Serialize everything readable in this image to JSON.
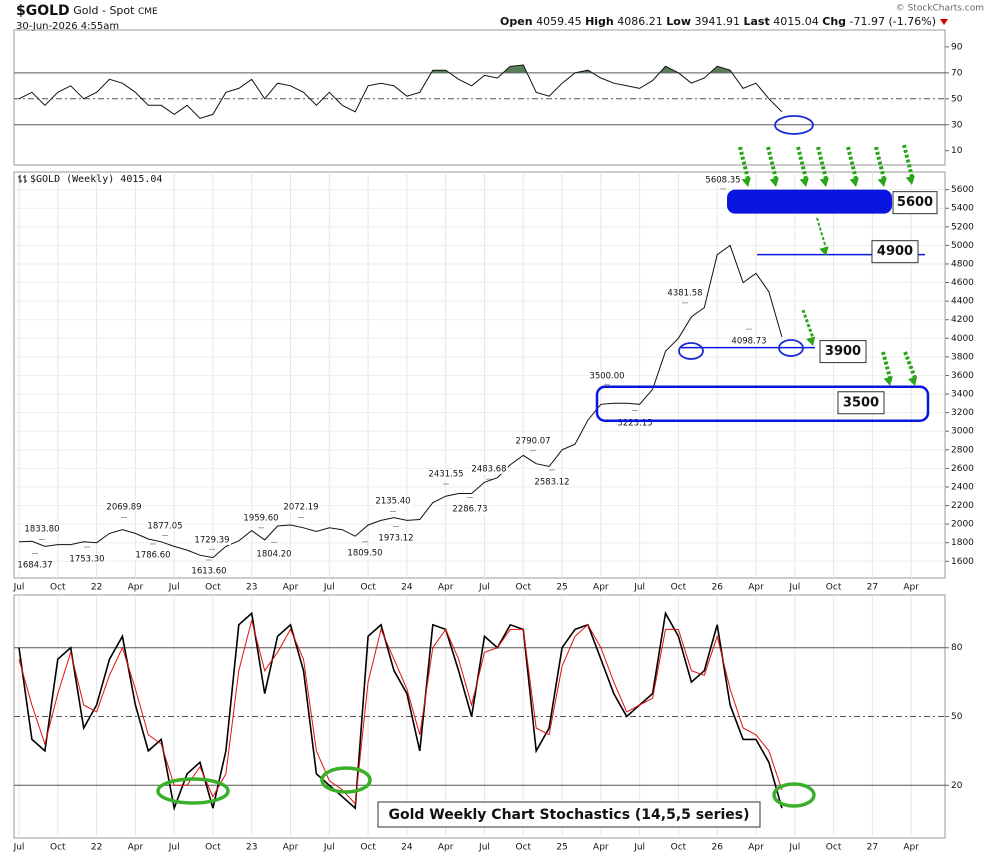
{
  "header": {
    "symbol": "$GOLD",
    "name": "Gold - Spot",
    "exchange": "CME",
    "date": "30-Jun-2026 4:55am",
    "open_label": "Open",
    "open": 4059.45,
    "high_label": "High",
    "high": 4086.21,
    "low_label": "Low",
    "low": 3941.91,
    "last_label": "Last",
    "last": 4015.04,
    "chg_label": "Chg",
    "chg": -71.97,
    "chg_pct": "(-1.76%)",
    "credit": "© StockCharts.com"
  },
  "chart_data": [
    {
      "type": "line",
      "ylim": [
        -1,
        103
      ],
      "yticks": [
        10,
        30,
        50,
        70,
        90
      ],
      "reference_lines": [
        {
          "value": 70,
          "style": "solid"
        },
        {
          "value": 50,
          "style": "dashdot"
        },
        {
          "value": 30,
          "style": "solid"
        }
      ],
      "fill_above": 70,
      "fill_color": "#5a7d5c",
      "series": [
        {
          "color": "#111111",
          "values": [
            50,
            55,
            45,
            55,
            60,
            50,
            55,
            65,
            62,
            55,
            45,
            45,
            38,
            45,
            35,
            38,
            55,
            58,
            65,
            50,
            62,
            60,
            55,
            45,
            55,
            45,
            40,
            60,
            62,
            60,
            52,
            55,
            72,
            72,
            65,
            60,
            68,
            66,
            75,
            76,
            55,
            52,
            62,
            70,
            72,
            66,
            62,
            60,
            58,
            64,
            75,
            70,
            62,
            66,
            75,
            72,
            58,
            62,
            50,
            40,
            null,
            null,
            null,
            null,
            null,
            null,
            null,
            null,
            null,
            null
          ]
        }
      ]
    },
    {
      "type": "line",
      "title": "$GOLD (Weekly) 4015.04",
      "ylim": [
        1420,
        5790
      ],
      "yticks": [
        1600,
        1800,
        2000,
        2200,
        2400,
        2600,
        2800,
        3000,
        3200,
        3400,
        3600,
        3800,
        4000,
        4200,
        4400,
        4600,
        4800,
        5000,
        5200,
        5400,
        5600
      ],
      "grid": true,
      "categories": [
        "Jul",
        null,
        null,
        "Oct",
        null,
        null,
        "22",
        null,
        null,
        "Apr",
        null,
        null,
        "Jul",
        null,
        null,
        "Oct",
        null,
        null,
        "23",
        null,
        null,
        "Apr",
        null,
        null,
        "Jul",
        null,
        null,
        "Oct",
        null,
        null,
        "24",
        null,
        null,
        "Apr",
        null,
        null,
        "Jul",
        null,
        null,
        "Oct",
        null,
        null,
        "25",
        null,
        null,
        "Apr",
        null,
        null,
        "Jul",
        null,
        null,
        "Oct",
        null,
        null,
        "26",
        null,
        null,
        "Apr",
        null,
        null,
        "Jul",
        null,
        null,
        "Oct",
        null,
        null,
        "27",
        null,
        null,
        "Apr"
      ],
      "series": [
        {
          "color": "#111111",
          "values": [
            1810,
            1815,
            1760,
            1780,
            1780,
            1810,
            1800,
            1900,
            1940,
            1900,
            1840,
            1810,
            1760,
            1720,
            1665,
            1640,
            1760,
            1820,
            1930,
            1830,
            1980,
            1990,
            1960,
            1920,
            1960,
            1940,
            1870,
            1990,
            2040,
            2070,
            2040,
            2050,
            2230,
            2300,
            2330,
            2330,
            2450,
            2500,
            2640,
            2740,
            2650,
            2620,
            2800,
            2860,
            3120,
            3290,
            3300,
            3300,
            3290,
            3450,
            3860,
            4000,
            4230,
            4330,
            4900,
            5000,
            4600,
            4700,
            4500,
            4015,
            null,
            null,
            null,
            null,
            null,
            null,
            null,
            null,
            null,
            null
          ]
        }
      ],
      "annotations": [
        {
          "value": 1833.8,
          "label": "1833.80"
        },
        {
          "value": 1684.37,
          "label": "1684.37"
        },
        {
          "value": 1753.3,
          "label": "1753.30"
        },
        {
          "value": 2069.89,
          "label": "2069.89"
        },
        {
          "value": 1786.6,
          "label": "1786.60"
        },
        {
          "value": 1877.05,
          "label": "1877.05"
        },
        {
          "value": 1729.39,
          "label": "1729.39"
        },
        {
          "value": 1613.6,
          "label": "1613.60"
        },
        {
          "value": 1959.6,
          "label": "1959.60"
        },
        {
          "value": 1804.2,
          "label": "1804.20"
        },
        {
          "value": 2072.19,
          "label": "2072.19"
        },
        {
          "value": 1809.5,
          "label": "1809.50"
        },
        {
          "value": 2135.4,
          "label": "2135.40"
        },
        {
          "value": 1973.12,
          "label": "1973.12"
        },
        {
          "value": 2431.55,
          "label": "2431.55"
        },
        {
          "value": 2286.73,
          "label": "2286.73"
        },
        {
          "value": 2483.68,
          "label": "2483.68"
        },
        {
          "value": 2790.07,
          "label": "2790.07"
        },
        {
          "value": 2583.12,
          "label": "2583.12"
        },
        {
          "value": 3500,
          "label": "3500.00"
        },
        {
          "value": 3223.15,
          "label": "3223.15"
        },
        {
          "value": 4381.58,
          "label": "4381.58"
        },
        {
          "value": 5608.35,
          "label": "5608.35"
        },
        {
          "value": 4098.73,
          "label": "4098.73"
        }
      ],
      "levels": [
        5600,
        4900,
        3900,
        3500
      ],
      "level_color": "#0a16e0"
    },
    {
      "type": "line",
      "title": "Gold Weekly Chart Stochastics (14,5,5 series)",
      "ylim": [
        -3,
        103
      ],
      "yticks": [
        20,
        50,
        80
      ],
      "reference_lines": [
        {
          "value": 80,
          "style": "solid"
        },
        {
          "value": 50,
          "style": "dashdot"
        },
        {
          "value": 20,
          "style": "solid"
        }
      ],
      "grid": true,
      "categories": [
        "Jul",
        null,
        null,
        "Oct",
        null,
        null,
        "22",
        null,
        null,
        "Apr",
        null,
        null,
        "Jul",
        null,
        null,
        "Oct",
        null,
        null,
        "23",
        null,
        null,
        "Apr",
        null,
        null,
        "Jul",
        null,
        null,
        "Oct",
        null,
        null,
        "24",
        null,
        null,
        "Apr",
        null,
        null,
        "Jul",
        null,
        null,
        "Oct",
        null,
        null,
        "25",
        null,
        null,
        "Apr",
        null,
        null,
        "Jul",
        null,
        null,
        "Oct",
        null,
        null,
        "26",
        null,
        null,
        "Apr",
        null,
        null,
        "Jul",
        null,
        null,
        "Oct",
        null,
        null,
        "27",
        null,
        null,
        "Apr"
      ],
      "series": [
        {
          "color": "#000000",
          "values": [
            80,
            40,
            35,
            75,
            80,
            45,
            55,
            75,
            85,
            55,
            35,
            40,
            10,
            25,
            30,
            10,
            35,
            90,
            95,
            60,
            85,
            90,
            70,
            25,
            20,
            15,
            10,
            85,
            90,
            70,
            60,
            35,
            90,
            88,
            70,
            50,
            85,
            80,
            90,
            88,
            35,
            45,
            80,
            88,
            90,
            75,
            60,
            50,
            55,
            60,
            95,
            85,
            65,
            70,
            90,
            55,
            40,
            40,
            30,
            10,
            null,
            null,
            null,
            null,
            null,
            null,
            null,
            null,
            null,
            null
          ]
        },
        {
          "color": "#e01010",
          "values": [
            75,
            55,
            38,
            60,
            78,
            55,
            52,
            68,
            80,
            62,
            42,
            38,
            20,
            20,
            28,
            15,
            25,
            70,
            92,
            70,
            78,
            88,
            75,
            35,
            22,
            18,
            12,
            65,
            88,
            75,
            62,
            42,
            80,
            88,
            75,
            55,
            78,
            80,
            88,
            88,
            45,
            42,
            72,
            85,
            90,
            80,
            65,
            52,
            55,
            58,
            88,
            88,
            70,
            68,
            85,
            62,
            45,
            42,
            35,
            18,
            null,
            null,
            null,
            null,
            null,
            null,
            null,
            null,
            null,
            null
          ]
        }
      ]
    }
  ]
}
